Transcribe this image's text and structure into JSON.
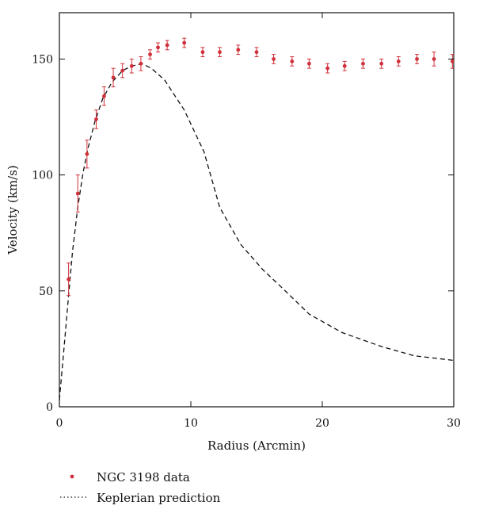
{
  "chart_data": {
    "type": "scatter",
    "title": "",
    "xlabel": "Radius (Arcmin)",
    "ylabel": "Velocity (km/s)",
    "xlim": [
      0,
      30
    ],
    "ylim": [
      0,
      170
    ],
    "x_ticks": [
      0,
      10,
      20,
      30
    ],
    "y_ticks": [
      0,
      50,
      100,
      150
    ],
    "x_tick_labels": [
      "0",
      "10",
      "20",
      "30"
    ],
    "y_tick_labels": [
      "0",
      "50",
      "100",
      "150"
    ],
    "grid": false,
    "legend_position": "bottom-left (below plot)",
    "series": [
      {
        "name": "NGC 3198 data",
        "style": "points-with-error-bars",
        "color": "#d0303a",
        "errorbar_color": "#d0303a",
        "points": [
          {
            "x": 0.7,
            "y": 55,
            "err": 7
          },
          {
            "x": 1.4,
            "y": 92,
            "err": 8
          },
          {
            "x": 2.1,
            "y": 109,
            "err": 6
          },
          {
            "x": 2.8,
            "y": 124,
            "err": 4
          },
          {
            "x": 3.4,
            "y": 134,
            "err": 4
          },
          {
            "x": 4.1,
            "y": 142,
            "err": 4
          },
          {
            "x": 4.8,
            "y": 145,
            "err": 3
          },
          {
            "x": 5.5,
            "y": 147,
            "err": 3
          },
          {
            "x": 6.2,
            "y": 148,
            "err": 3
          },
          {
            "x": 6.9,
            "y": 152,
            "err": 2
          },
          {
            "x": 7.5,
            "y": 155,
            "err": 2
          },
          {
            "x": 8.2,
            "y": 156,
            "err": 2
          },
          {
            "x": 9.5,
            "y": 157,
            "err": 2
          },
          {
            "x": 10.9,
            "y": 153,
            "err": 2
          },
          {
            "x": 12.2,
            "y": 153,
            "err": 2
          },
          {
            "x": 13.6,
            "y": 154,
            "err": 2
          },
          {
            "x": 15.0,
            "y": 153,
            "err": 2
          },
          {
            "x": 16.3,
            "y": 150,
            "err": 2
          },
          {
            "x": 17.7,
            "y": 149,
            "err": 2
          },
          {
            "x": 19.0,
            "y": 148,
            "err": 2
          },
          {
            "x": 20.4,
            "y": 146,
            "err": 2
          },
          {
            "x": 21.7,
            "y": 147,
            "err": 2
          },
          {
            "x": 23.1,
            "y": 148,
            "err": 2
          },
          {
            "x": 24.5,
            "y": 148,
            "err": 2
          },
          {
            "x": 25.8,
            "y": 149,
            "err": 2
          },
          {
            "x": 27.2,
            "y": 150,
            "err": 2
          },
          {
            "x": 28.5,
            "y": 150,
            "err": 3
          },
          {
            "x": 29.9,
            "y": 149,
            "err": 3
          }
        ]
      },
      {
        "name": "Keplerian prediction",
        "style": "dashed-line",
        "color": "#111111",
        "points": [
          {
            "x": 0.0,
            "y": 3
          },
          {
            "x": 0.3,
            "y": 22
          },
          {
            "x": 0.7,
            "y": 48
          },
          {
            "x": 1.0,
            "y": 67
          },
          {
            "x": 1.4,
            "y": 86
          },
          {
            "x": 1.8,
            "y": 101
          },
          {
            "x": 2.2,
            "y": 112
          },
          {
            "x": 2.7,
            "y": 123
          },
          {
            "x": 3.3,
            "y": 133
          },
          {
            "x": 4.0,
            "y": 140
          },
          {
            "x": 4.8,
            "y": 145
          },
          {
            "x": 5.5,
            "y": 147
          },
          {
            "x": 6.3,
            "y": 148
          },
          {
            "x": 7.0,
            "y": 146
          },
          {
            "x": 8.0,
            "y": 141
          },
          {
            "x": 9.5,
            "y": 128
          },
          {
            "x": 11.0,
            "y": 110
          },
          {
            "x": 12.2,
            "y": 86
          },
          {
            "x": 13.8,
            "y": 70
          },
          {
            "x": 15.5,
            "y": 59
          },
          {
            "x": 17.0,
            "y": 51
          },
          {
            "x": 19.0,
            "y": 40
          },
          {
            "x": 21.5,
            "y": 32
          },
          {
            "x": 24.5,
            "y": 26
          },
          {
            "x": 27.0,
            "y": 22
          },
          {
            "x": 30.0,
            "y": 20
          }
        ]
      }
    ]
  }
}
